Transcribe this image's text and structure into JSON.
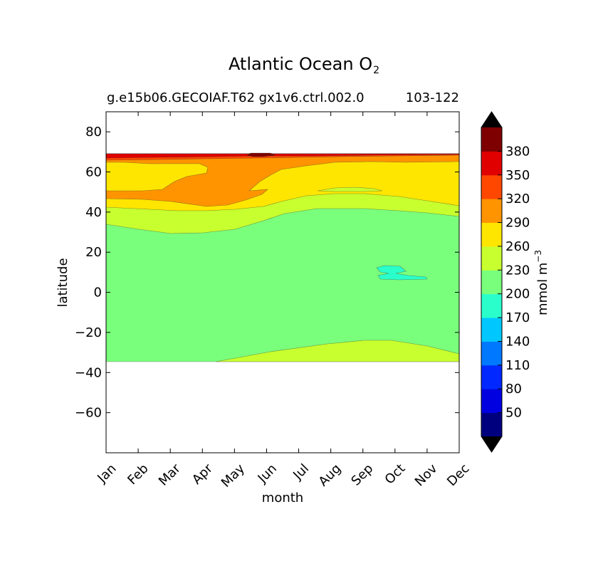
{
  "title": {
    "main": "Atlantic Ocean O",
    "sub": "2"
  },
  "subtitle_left": "g.e15b06.GECOIAF.T62 gx1v6.ctrl.002.0",
  "subtitle_right": "103-122",
  "chart_data": {
    "type": "contour",
    "xlabel": "month",
    "ylabel": "latitude",
    "x_categories": [
      "Jan",
      "Feb",
      "Mar",
      "Apr",
      "May",
      "Jun",
      "Jul",
      "Aug",
      "Sep",
      "Oct",
      "Nov",
      "Dec"
    ],
    "xlim": [
      "Jan",
      "Dec"
    ],
    "ylim": [
      -80,
      90
    ],
    "yticks": [
      80,
      60,
      40,
      20,
      0,
      -20,
      -40,
      -60
    ],
    "ytick_labels": [
      "80",
      "60",
      "40",
      "20",
      "0",
      "−20",
      "−40",
      "−60"
    ],
    "data_extent_latitude": [
      -34,
      68
    ],
    "colorbar": {
      "label": "mmol m",
      "label_exponent": "−3",
      "levels": [
        20,
        50,
        80,
        110,
        140,
        170,
        200,
        230,
        260,
        290,
        320,
        350,
        380,
        410
      ],
      "tick_labels": [
        "50",
        "80",
        "110",
        "140",
        "170",
        "200",
        "230",
        "260",
        "290",
        "320",
        "350",
        "380"
      ],
      "colors": [
        "#00007f",
        "#0000e0",
        "#0028ff",
        "#0078ff",
        "#00c8ff",
        "#2affcc",
        "#7aff7c",
        "#c8ff2e",
        "#ffe600",
        "#ff9400",
        "#ff4700",
        "#e00000",
        "#7f0000"
      ],
      "extend": "both",
      "under_color": "#000000",
      "over_color": "#000000"
    },
    "contour_bands": [
      {
        "range": [
          170,
          200
        ],
        "color": "#2affcc",
        "location": "small patch near Oct, ~7-13 N"
      },
      {
        "range": [
          200,
          230
        ],
        "color": "#7aff7c",
        "location": "tropics and subtropics, ~-34 to ~35-42 N"
      },
      {
        "range": [
          230,
          260
        ],
        "color": "#c8ff2e",
        "location": "~35-45 N band and south of ~-23 to -34"
      },
      {
        "range": [
          260,
          290
        ],
        "color": "#ffe600",
        "location": "~40-65 N"
      },
      {
        "range": [
          290,
          320
        ],
        "color": "#ff9400",
        "location": "~44-66 N, Mar-Jul maximum"
      },
      {
        "range": [
          320,
          350
        ],
        "color": "#ff4700",
        "location": "thin band ~66-68 N"
      },
      {
        "range": [
          350,
          380
        ],
        "color": "#e00000",
        "location": "~67-68 N"
      },
      {
        "range": [
          380,
          410
        ],
        "color": "#7f0000",
        "location": "small patch near Jun, ~68 N"
      }
    ]
  }
}
